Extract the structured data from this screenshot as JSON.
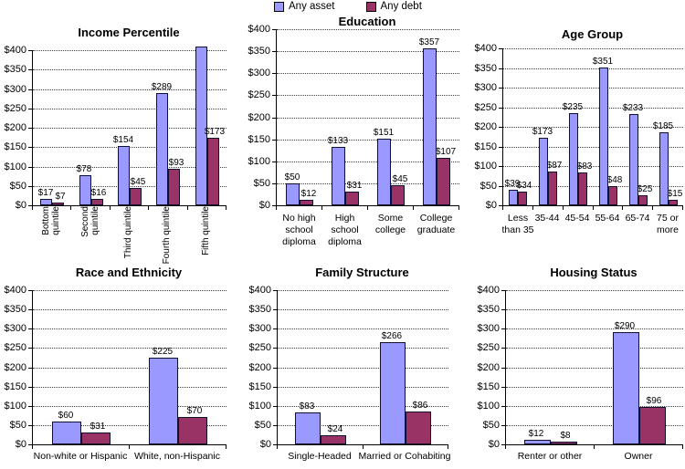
{
  "figure": {
    "background": "#FFFFFF"
  },
  "legend": {
    "position": "top-center",
    "entries": [
      {
        "label": "Any asset",
        "color": "#9999FF"
      },
      {
        "label": "Any debt",
        "color": "#993366"
      }
    ]
  },
  "chart_data": [
    {
      "type": "bar",
      "title": "Income Percentile",
      "xlabel": "",
      "ylabel": "",
      "ylim": [
        0,
        400
      ],
      "ytick": 50,
      "ytick_labels": [
        "$0",
        "$50",
        "$100",
        "$150",
        "$200",
        "$250",
        "$300",
        "$350",
        "$400"
      ],
      "grid": "horizontal-dotted",
      "category_label_rotation": 90,
      "categories": [
        "Bottom quintile",
        "Second quintile",
        "Third quintile",
        "Fourth quintile",
        "Fifth quintile"
      ],
      "series": [
        {
          "name": "Any asset",
          "color": "#9999FF",
          "values": [
            17,
            78,
            154,
            289,
            400
          ],
          "data_labels": [
            "$17",
            "$78",
            "$154",
            "$289",
            ""
          ],
          "clipped": [
            false,
            false,
            false,
            false,
            true
          ],
          "note_on_clipped": "bar exceeds axis maximum and is cut off with no label"
        },
        {
          "name": "Any debt",
          "color": "#993366",
          "values": [
            7,
            16,
            45,
            93,
            173
          ],
          "data_labels": [
            "$7",
            "$16",
            "$45",
            "$93",
            "$173"
          ]
        }
      ]
    },
    {
      "type": "bar",
      "title": "Education",
      "xlabel": "",
      "ylabel": "",
      "ylim": [
        0,
        400
      ],
      "ytick": 50,
      "ytick_labels": [
        "$0",
        "$50",
        "$100",
        "$150",
        "$200",
        "$250",
        "$300",
        "$350",
        "$400"
      ],
      "grid": "horizontal-dotted",
      "category_label_rotation": 0,
      "categories": [
        "No high school diploma",
        "High school diploma",
        "Some college",
        "College graduate"
      ],
      "series": [
        {
          "name": "Any asset",
          "color": "#9999FF",
          "values": [
            50,
            133,
            151,
            357
          ],
          "data_labels": [
            "$50",
            "$133",
            "$151",
            "$357"
          ]
        },
        {
          "name": "Any debt",
          "color": "#993366",
          "values": [
            12,
            31,
            45,
            107
          ],
          "data_labels": [
            "$12",
            "$31",
            "$45",
            "$107"
          ]
        }
      ]
    },
    {
      "type": "bar",
      "title": "Age Group",
      "xlabel": "",
      "ylabel": "",
      "ylim": [
        0,
        400
      ],
      "ytick": 50,
      "ytick_labels": [
        "$0",
        "$50",
        "$100",
        "$150",
        "$200",
        "$250",
        "$300",
        "$350",
        "$400"
      ],
      "grid": "horizontal-dotted",
      "category_label_rotation": 0,
      "categories": [
        "Less than 35",
        "35-44",
        "45-54",
        "55-64",
        "65-74",
        "75 or more"
      ],
      "series": [
        {
          "name": "Any asset",
          "color": "#9999FF",
          "values": [
            39,
            173,
            235,
            351,
            233,
            185
          ],
          "data_labels": [
            "$39",
            "$173",
            "$235",
            "$351",
            "$233",
            "$185"
          ]
        },
        {
          "name": "Any debt",
          "color": "#993366",
          "values": [
            34,
            87,
            83,
            48,
            25,
            15
          ],
          "data_labels": [
            "$34",
            "$87",
            "$83",
            "$48",
            "$25",
            "$15"
          ]
        }
      ]
    },
    {
      "type": "bar",
      "title": "Race and Ethnicity",
      "xlabel": "",
      "ylabel": "",
      "ylim": [
        0,
        400
      ],
      "ytick": 50,
      "ytick_labels": [
        "$0",
        "$50",
        "$100",
        "$150",
        "$200",
        "$250",
        "$300",
        "$350",
        "$400"
      ],
      "grid": "horizontal-dotted",
      "category_label_rotation": 0,
      "categories": [
        "Non-white or Hispanic",
        "White, non-Hispanic"
      ],
      "series": [
        {
          "name": "Any asset",
          "color": "#9999FF",
          "values": [
            60,
            225
          ],
          "data_labels": [
            "$60",
            "$225"
          ]
        },
        {
          "name": "Any debt",
          "color": "#993366",
          "values": [
            31,
            70
          ],
          "data_labels": [
            "$31",
            "$70"
          ]
        }
      ]
    },
    {
      "type": "bar",
      "title": "Family Structure",
      "xlabel": "",
      "ylabel": "",
      "ylim": [
        0,
        400
      ],
      "ytick": 50,
      "ytick_labels": [
        "$0",
        "$50",
        "$100",
        "$150",
        "$200",
        "$250",
        "$300",
        "$350",
        "$400"
      ],
      "grid": "horizontal-dotted",
      "category_label_rotation": 0,
      "categories": [
        "Single-Headed",
        "Married or Cohabiting"
      ],
      "series": [
        {
          "name": "Any asset",
          "color": "#9999FF",
          "values": [
            83,
            266
          ],
          "data_labels": [
            "$83",
            "$266"
          ]
        },
        {
          "name": "Any debt",
          "color": "#993366",
          "values": [
            24,
            86
          ],
          "data_labels": [
            "$24",
            "$86"
          ]
        }
      ]
    },
    {
      "type": "bar",
      "title": "Housing Status",
      "xlabel": "",
      "ylabel": "",
      "ylim": [
        0,
        400
      ],
      "ytick": 50,
      "ytick_labels": [
        "$0",
        "$50",
        "$100",
        "$150",
        "$200",
        "$250",
        "$300",
        "$350",
        "$400"
      ],
      "grid": "horizontal-dotted",
      "category_label_rotation": 0,
      "categories": [
        "Renter or other",
        "Owner"
      ],
      "series": [
        {
          "name": "Any asset",
          "color": "#9999FF",
          "values": [
            12,
            290
          ],
          "data_labels": [
            "$12",
            "$290"
          ]
        },
        {
          "name": "Any debt",
          "color": "#993366",
          "values": [
            8,
            96
          ],
          "data_labels": [
            "$8",
            "$96"
          ]
        }
      ]
    }
  ]
}
